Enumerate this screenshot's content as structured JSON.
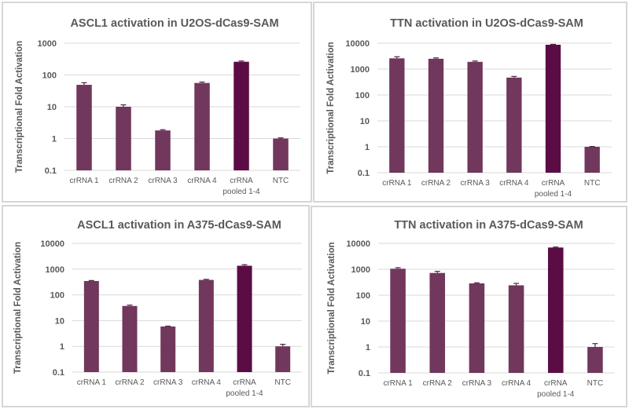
{
  "colors": {
    "bar": "#71375c",
    "bar_pooled": "#5c0c44",
    "grid": "#d9d9d9",
    "text": "#595959"
  },
  "chart_data": [
    {
      "type": "bar",
      "title": "ASCL1 activation in U2OS-dCas9-SAM",
      "xlabel": "",
      "ylabel": "Transcriptional Fold Activation",
      "yscale": "log",
      "ylim": [
        0.1,
        1000
      ],
      "yticks": [
        "0.1",
        "1",
        "10",
        "100",
        "1000"
      ],
      "grid": true,
      "categories": [
        [
          "crRNA 1"
        ],
        [
          "crRNA 2"
        ],
        [
          "crRNA 3"
        ],
        [
          "crRNA 4"
        ],
        [
          "crRNA",
          "pooled 1-4"
        ],
        [
          "NTC"
        ]
      ],
      "values": [
        49,
        10,
        1.8,
        56,
        260,
        1.0
      ],
      "error_upper": [
        57,
        11.5,
        1.9,
        60,
        275,
        1.05
      ],
      "highlight_index": 4
    },
    {
      "type": "bar",
      "title": "TTN activation in U2OS-dCas9-SAM",
      "xlabel": "",
      "ylabel": "Transcriptional Fold Activation",
      "yscale": "log",
      "ylim": [
        0.1,
        10000
      ],
      "yticks": [
        "0.1",
        "1",
        "10",
        "100",
        "1000",
        "10000"
      ],
      "grid": true,
      "categories": [
        [
          "crRNA 1"
        ],
        [
          "crRNA 2"
        ],
        [
          "crRNA 3"
        ],
        [
          "crRNA 4"
        ],
        [
          "crRNA",
          "pooled 1-4"
        ],
        [
          "NTC"
        ]
      ],
      "values": [
        2600,
        2500,
        1900,
        470,
        8700,
        1.0
      ],
      "error_upper": [
        3000,
        2700,
        2050,
        520,
        9000,
        1.03
      ],
      "highlight_index": 4
    },
    {
      "type": "bar",
      "title": "ASCL1 activation in A375-dCas9-SAM",
      "xlabel": "",
      "ylabel": "Transcriptional Fold Activation",
      "yscale": "log",
      "ylim": [
        0.1,
        10000
      ],
      "yticks": [
        "0.1",
        "1",
        "10",
        "100",
        "1000",
        "10000"
      ],
      "grid": true,
      "categories": [
        [
          "crRNA 1"
        ],
        [
          "crRNA 2"
        ],
        [
          "crRNA 3"
        ],
        [
          "crRNA 4"
        ],
        [
          "crRNA",
          "pooled 1-4"
        ],
        [
          "NTC"
        ]
      ],
      "values": [
        345,
        37,
        5.9,
        380,
        1350,
        1.0
      ],
      "error_upper": [
        360,
        40,
        6.1,
        400,
        1480,
        1.2
      ],
      "highlight_index": 4
    },
    {
      "type": "bar",
      "title": "TTN activation in A375-dCas9-SAM",
      "xlabel": "",
      "ylabel": "Transcriptional Fold Activation",
      "yscale": "log",
      "ylim": [
        0.1,
        10000
      ],
      "yticks": [
        "0.1",
        "1",
        "10",
        "100",
        "1000",
        "10000"
      ],
      "grid": true,
      "categories": [
        [
          "crRNA 1"
        ],
        [
          "crRNA 2"
        ],
        [
          "crRNA 3"
        ],
        [
          "crRNA 4"
        ],
        [
          "crRNA",
          "pooled 1-4"
        ],
        [
          "NTC"
        ]
      ],
      "values": [
        1050,
        720,
        285,
        240,
        6900,
        1.0
      ],
      "error_upper": [
        1150,
        830,
        300,
        285,
        7200,
        1.35
      ],
      "highlight_index": 4
    }
  ]
}
